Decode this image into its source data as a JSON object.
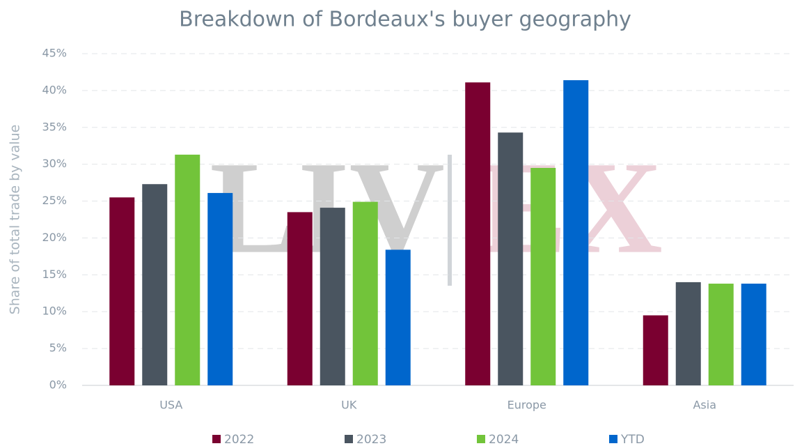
{
  "chart_data": {
    "type": "bar",
    "title": "Breakdown of Bordeaux's buyer geography",
    "y_label": "Share of total trade by value",
    "watermark": [
      "LIV",
      "EX"
    ],
    "categories": [
      "USA",
      "UK",
      "Europe",
      "Asia"
    ],
    "series": [
      {
        "name": "2022",
        "color": "#7a0030",
        "values": [
          25.5,
          23.5,
          41.1,
          9.5
        ]
      },
      {
        "name": "2023",
        "color": "#4a5560",
        "values": [
          27.3,
          24.1,
          34.3,
          14.0
        ]
      },
      {
        "name": "2024",
        "color": "#72c43a",
        "values": [
          31.3,
          24.9,
          29.5,
          13.8
        ]
      },
      {
        "name": "YTD",
        "color": "#0066cc",
        "values": [
          26.1,
          18.4,
          41.4,
          13.8
        ]
      }
    ],
    "ylim": [
      0,
      45
    ],
    "yticks": [
      {
        "value": 0,
        "label": "0%"
      },
      {
        "value": 5,
        "label": "5%"
      },
      {
        "value": 10,
        "label": "10%"
      },
      {
        "value": 15,
        "label": "15%"
      },
      {
        "value": 20,
        "label": "20%"
      },
      {
        "value": 25,
        "label": "25%"
      },
      {
        "value": 30,
        "label": "30%"
      },
      {
        "value": 35,
        "label": "35%"
      },
      {
        "value": 40,
        "label": "40%"
      },
      {
        "value": 45,
        "label": "45%"
      }
    ],
    "grid": true,
    "legend": "bottom"
  }
}
